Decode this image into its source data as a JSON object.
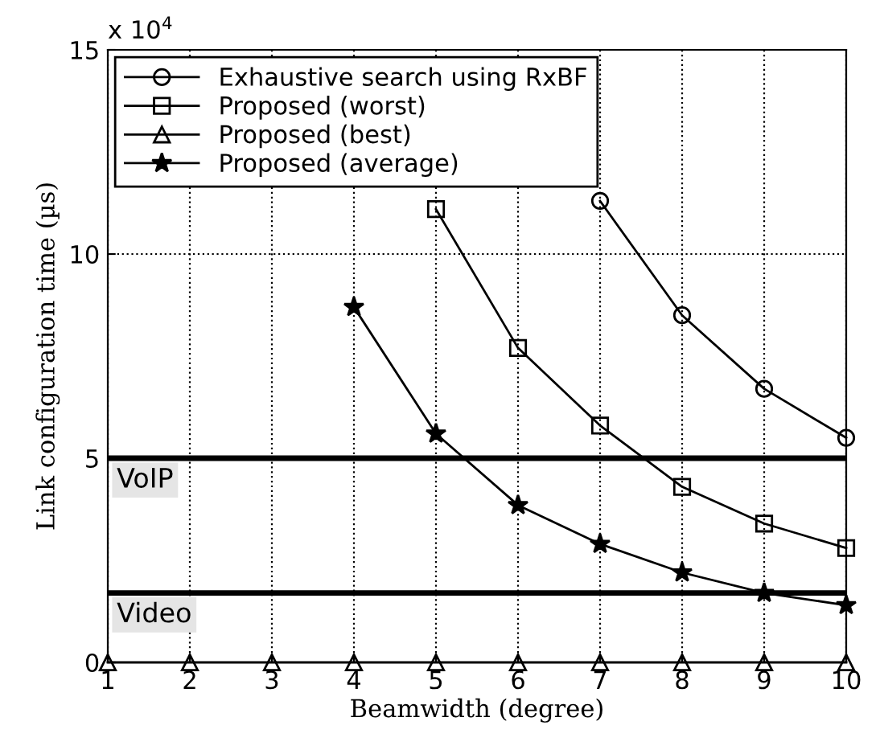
{
  "chart_data": {
    "type": "line",
    "xlabel": "Beamwidth (degree)",
    "ylabel": "Link configuration time (µs)",
    "x": [
      1,
      2,
      3,
      4,
      5,
      6,
      7,
      8,
      9,
      10
    ],
    "series": [
      {
        "name": "Exhaustive search using RxBF",
        "color": "#000000",
        "marker": "circle",
        "values": [
          null,
          null,
          null,
          null,
          null,
          null,
          11.3,
          8.5,
          6.7,
          5.5
        ]
      },
      {
        "name": "Proposed (worst)",
        "color": "#000000",
        "marker": "square",
        "values": [
          null,
          null,
          null,
          null,
          11.1,
          7.7,
          5.8,
          4.3,
          3.4,
          2.8
        ]
      },
      {
        "name": "Proposed (best)",
        "color": "#000000",
        "marker": "triangle",
        "values": [
          0,
          0,
          0,
          0,
          0,
          0,
          0,
          0,
          0,
          0
        ]
      },
      {
        "name": "Proposed (average)",
        "color": "#000000",
        "marker": "star",
        "values": [
          null,
          null,
          null,
          8.7,
          5.6,
          3.85,
          2.9,
          2.2,
          1.7,
          1.4
        ]
      }
    ],
    "xlim": [
      1,
      10
    ],
    "xticks": [
      1,
      2,
      3,
      4,
      5,
      6,
      7,
      8,
      9,
      10
    ],
    "ylim": [
      0,
      15
    ],
    "yticks": [
      0,
      5,
      10,
      15
    ],
    "ref_lines": [
      {
        "axis": "y",
        "value": 5,
        "label": "VoIP",
        "color": "#000000"
      },
      {
        "axis": "y",
        "value": 1.7,
        "label": "Video",
        "color": "#000000"
      }
    ],
    "annotations": [
      "x 10$^{4}$"
    ],
    "grid": true,
    "legend": "top left",
    "line_style": "solid"
  }
}
